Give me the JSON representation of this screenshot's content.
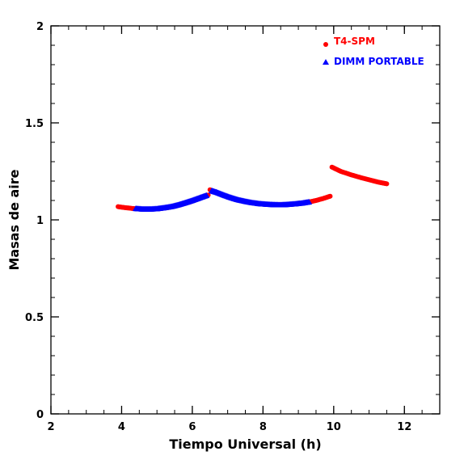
{
  "chart_data": {
    "type": "scatter",
    "xlabel": "Tiempo Universal (h)",
    "ylabel": "Masas de aire",
    "xlim": [
      2,
      13
    ],
    "ylim": [
      0,
      2
    ],
    "xticks_major": [
      2,
      4,
      6,
      8,
      10,
      12
    ],
    "yticks_major": [
      0,
      0.5,
      1,
      1.5,
      2
    ],
    "x_tick_labels": [
      "2",
      "4",
      "6",
      "8",
      "10",
      "12"
    ],
    "y_tick_labels": [
      "0",
      "0.5",
      "1",
      "1.5",
      "2"
    ],
    "grid": false,
    "legend_position": "top-right",
    "series": [
      {
        "name": "T4-SPM",
        "color": "#ff0000",
        "marker": "circle",
        "segments": [
          {
            "x": [
              3.9,
              4.1,
              4.3,
              4.5,
              4.7,
              4.9,
              5.1,
              5.3,
              5.5,
              5.7,
              5.9,
              6.1,
              6.3,
              6.45
            ],
            "y": [
              1.068,
              1.063,
              1.059,
              1.056,
              1.055,
              1.056,
              1.058,
              1.063,
              1.07,
              1.08,
              1.09,
              1.103,
              1.118,
              1.128
            ]
          },
          {
            "x": [
              6.5,
              6.7,
              6.9,
              7.1,
              7.3,
              7.5,
              7.7,
              7.9,
              8.1,
              8.3,
              8.5,
              8.7,
              8.9,
              9.1,
              9.3,
              9.5,
              9.7,
              9.9
            ],
            "y": [
              1.155,
              1.14,
              1.126,
              1.113,
              1.103,
              1.095,
              1.088,
              1.083,
              1.08,
              1.078,
              1.078,
              1.079,
              1.082,
              1.086,
              1.092,
              1.1,
              1.11,
              1.122
            ]
          },
          {
            "x": [
              9.95,
              10.2,
              10.5,
              10.8,
              11.1,
              11.3,
              11.5
            ],
            "y": [
              1.272,
              1.25,
              1.232,
              1.216,
              1.202,
              1.193,
              1.186
            ]
          }
        ]
      },
      {
        "name": "DIMM PORTABLE",
        "color": "#0000ff",
        "marker": "triangle",
        "segments": [
          {
            "x": [
              4.4,
              4.6,
              4.8,
              5.0,
              5.2,
              5.4,
              5.6,
              5.8,
              6.0,
              6.2,
              6.4
            ],
            "y": [
              1.058,
              1.055,
              1.055,
              1.057,
              1.062,
              1.068,
              1.077,
              1.088,
              1.1,
              1.113,
              1.126
            ]
          },
          {
            "x": [
              6.55,
              6.7,
              6.9,
              7.1,
              7.3,
              7.5,
              7.7,
              7.9,
              8.1,
              8.3,
              8.5,
              8.7,
              8.9,
              9.1,
              9.3
            ],
            "y": [
              1.15,
              1.141,
              1.127,
              1.114,
              1.103,
              1.095,
              1.088,
              1.083,
              1.08,
              1.078,
              1.077,
              1.079,
              1.082,
              1.086,
              1.092
            ]
          }
        ]
      }
    ]
  }
}
